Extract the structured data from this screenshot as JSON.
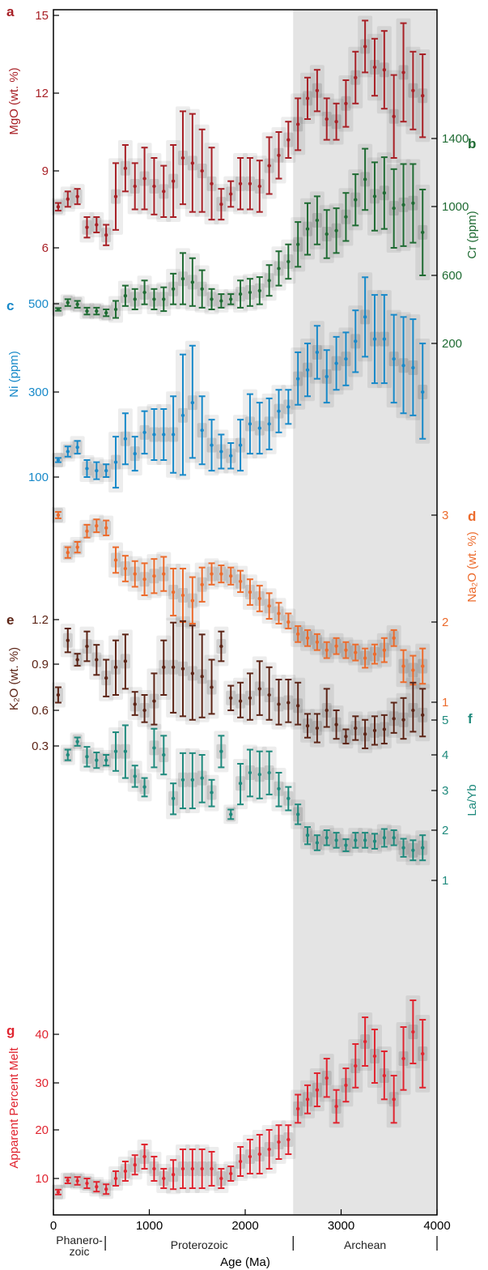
{
  "chart_data": {
    "type": "scatter",
    "x_axis": {
      "label": "Age (Ma)",
      "range": [
        0,
        4000
      ],
      "ticks": [
        "0",
        "1000",
        "2000",
        "3000",
        "4000"
      ],
      "shaded_from": 2500,
      "eons": [
        {
          "name": "Phanero-",
          "name2": "zoic",
          "from": 0,
          "to": 541
        },
        {
          "name": "Proterozoic",
          "from": 541,
          "to": 2500
        },
        {
          "name": "Archean",
          "from": 2500,
          "to": 4000
        }
      ]
    },
    "x": [
      50,
      150,
      250,
      350,
      450,
      550,
      650,
      750,
      850,
      950,
      1050,
      1150,
      1250,
      1350,
      1450,
      1550,
      1650,
      1750,
      1850,
      1950,
      2050,
      2150,
      2250,
      2350,
      2450,
      2550,
      2650,
      2750,
      2850,
      2950,
      3050,
      3150,
      3250,
      3350,
      3450,
      3550,
      3650,
      3750,
      3850
    ],
    "panels": [
      {
        "letter": "a",
        "label": "MgO (wt. %)",
        "side": "left",
        "color": "#a82026",
        "ticks": [
          "6",
          "9",
          "12",
          "15"
        ],
        "values": [
          7.6,
          7.9,
          8.0,
          6.8,
          6.9,
          6.5,
          8.0,
          9.1,
          8.4,
          8.7,
          8.4,
          8.2,
          8.6,
          9.5,
          9.3,
          9.0,
          8.5,
          7.7,
          8.1,
          8.5,
          8.5,
          8.4,
          9.2,
          9.6,
          10.2,
          10.8,
          11.8,
          12.1,
          11.0,
          10.9,
          11.6,
          12.6,
          13.8,
          13.0,
          12.9,
          11.1,
          12.8,
          12.1,
          11.9
        ],
        "err": [
          0.15,
          0.3,
          0.3,
          0.4,
          0.3,
          0.4,
          1.3,
          0.9,
          0.9,
          1.2,
          1.1,
          1.0,
          1.4,
          1.8,
          1.9,
          1.6,
          1.4,
          0.6,
          0.5,
          1.0,
          1.0,
          1.0,
          1.1,
          0.9,
          0.7,
          1.0,
          0.8,
          0.8,
          0.8,
          0.7,
          0.9,
          1.0,
          1.0,
          1.1,
          1.5,
          1.6,
          1.9,
          1.5,
          1.6
        ]
      },
      {
        "letter": "b",
        "label": "Cr (ppm)",
        "side": "right",
        "color": "#1f6b33",
        "ticks": [
          "200",
          "600",
          "1000",
          "1400"
        ],
        "values": [
          400,
          440,
          430,
          390,
          390,
          380,
          400,
          480,
          460,
          500,
          460,
          460,
          520,
          580,
          560,
          520,
          460,
          450,
          460,
          490,
          500,
          510,
          570,
          640,
          680,
          780,
          870,
          920,
          840,
          860,
          940,
          1040,
          1160,
          1060,
          1080,
          990,
          1010,
          1020,
          850
        ],
        "err": [
          8,
          20,
          20,
          20,
          20,
          20,
          50,
          60,
          60,
          70,
          60,
          70,
          90,
          150,
          140,
          110,
          60,
          40,
          30,
          80,
          80,
          80,
          90,
          100,
          100,
          130,
          150,
          140,
          140,
          130,
          140,
          150,
          180,
          200,
          210,
          230,
          240,
          230,
          250
        ]
      },
      {
        "letter": "c",
        "label": "Ni (ppm)",
        "side": "left",
        "color": "#1789c9",
        "ticks": [
          "100",
          "300",
          "500"
        ],
        "values": [
          140,
          160,
          170,
          120,
          115,
          115,
          135,
          190,
          155,
          205,
          200,
          200,
          200,
          245,
          275,
          210,
          175,
          160,
          150,
          175,
          225,
          215,
          225,
          255,
          265,
          330,
          350,
          390,
          335,
          365,
          375,
          415,
          470,
          420,
          420,
          375,
          360,
          355,
          300
        ],
        "err": [
          5,
          12,
          15,
          20,
          20,
          15,
          60,
          60,
          40,
          50,
          60,
          60,
          90,
          140,
          130,
          80,
          60,
          40,
          30,
          60,
          70,
          60,
          60,
          50,
          40,
          60,
          60,
          60,
          60,
          60,
          60,
          70,
          90,
          100,
          100,
          100,
          110,
          110,
          110
        ]
      },
      {
        "letter": "d",
        "label": "Na₂O (wt. %)",
        "side": "right",
        "color": "#ec6b2c",
        "ticks": [
          "1",
          "2",
          "3"
        ],
        "values": [
          3.0,
          2.65,
          2.7,
          2.85,
          2.9,
          2.88,
          2.58,
          2.5,
          2.45,
          2.4,
          2.43,
          2.45,
          2.28,
          2.25,
          2.2,
          2.35,
          2.45,
          2.45,
          2.43,
          2.38,
          2.28,
          2.22,
          2.15,
          2.08,
          2.0,
          1.85,
          1.8,
          1.75,
          1.65,
          1.7,
          1.65,
          1.62,
          1.55,
          1.6,
          1.65,
          1.8,
          1.45,
          1.4,
          1.45
        ],
        "err": [
          0.03,
          0.05,
          0.05,
          0.06,
          0.06,
          0.07,
          0.12,
          0.12,
          0.12,
          0.15,
          0.16,
          0.16,
          0.22,
          0.25,
          0.22,
          0.16,
          0.1,
          0.08,
          0.08,
          0.1,
          0.12,
          0.12,
          0.12,
          0.1,
          0.08,
          0.1,
          0.1,
          0.1,
          0.1,
          0.1,
          0.1,
          0.1,
          0.12,
          0.12,
          0.15,
          0.1,
          0.2,
          0.18,
          0.22
        ]
      },
      {
        "letter": "e",
        "label": "K₂O (wt. %)",
        "side": "left",
        "color": "#5c2416",
        "ticks": [
          "0.3",
          "0.6",
          "0.9",
          "1.2"
        ],
        "values": [
          0.7,
          1.06,
          0.93,
          1.02,
          0.93,
          0.81,
          0.88,
          0.92,
          0.64,
          0.6,
          0.66,
          0.88,
          0.88,
          0.87,
          0.84,
          0.82,
          0.75,
          1.02,
          0.68,
          0.66,
          0.68,
          0.74,
          0.7,
          0.64,
          0.65,
          0.63,
          0.47,
          0.45,
          0.6,
          0.48,
          0.38,
          0.45,
          0.4,
          0.43,
          0.44,
          0.53,
          0.52,
          0.6,
          0.56
        ],
        "err": [
          0.05,
          0.08,
          0.04,
          0.1,
          0.1,
          0.12,
          0.18,
          0.18,
          0.08,
          0.1,
          0.18,
          0.18,
          0.3,
          0.32,
          0.32,
          0.28,
          0.18,
          0.1,
          0.08,
          0.12,
          0.16,
          0.18,
          0.18,
          0.16,
          0.15,
          0.15,
          0.1,
          0.12,
          0.14,
          0.12,
          0.06,
          0.1,
          0.12,
          0.12,
          0.12,
          0.12,
          0.16,
          0.18,
          0.18
        ]
      },
      {
        "letter": "f",
        "label": "La/Yb",
        "side": "right",
        "color": "#1f8a7d",
        "ticks": [
          "1",
          "2",
          "3",
          "4",
          "5"
        ],
        "values": [
          null,
          4.0,
          4.38,
          3.95,
          3.85,
          3.85,
          4.1,
          4.1,
          3.4,
          3.1,
          4.2,
          4.0,
          2.8,
          3.3,
          3.3,
          3.35,
          2.95,
          4.1,
          2.4,
          3.2,
          3.5,
          3.45,
          3.5,
          3.05,
          2.8,
          2.4,
          1.9,
          1.75,
          1.85,
          1.8,
          1.7,
          1.8,
          1.8,
          1.78,
          1.85,
          1.85,
          1.65,
          1.6,
          1.65
        ],
        "err": [
          0,
          0.15,
          0.12,
          0.28,
          0.22,
          0.15,
          0.55,
          0.75,
          0.3,
          0.25,
          0.55,
          0.55,
          0.4,
          0.75,
          0.75,
          0.65,
          0.35,
          0.45,
          0.12,
          0.55,
          0.65,
          0.65,
          0.6,
          0.45,
          0.3,
          0.25,
          0.18,
          0.15,
          0.15,
          0.15,
          0.12,
          0.15,
          0.15,
          0.15,
          0.18,
          0.15,
          0.18,
          0.2,
          0.25
        ]
      },
      {
        "letter": "g",
        "label": "Apparent Percent Melt",
        "side": "left",
        "color": "#e02530",
        "ticks": [
          "10",
          "20",
          "30",
          "40"
        ],
        "values": [
          7.2,
          9.6,
          9.5,
          9.0,
          8.3,
          7.8,
          10.0,
          11.5,
          12.8,
          14.5,
          12.0,
          10.0,
          10.8,
          12.0,
          12.0,
          12.0,
          12.0,
          10.0,
          11.0,
          13.5,
          14.5,
          15.0,
          16.0,
          17.5,
          18.0,
          24.5,
          26.5,
          28.5,
          31.0,
          25.0,
          29.5,
          33.5,
          38.5,
          35.5,
          31.5,
          26.5,
          35.0,
          40.5,
          36.0
        ],
        "err": [
          0.5,
          0.6,
          0.8,
          1.0,
          1.0,
          1.0,
          1.5,
          2.0,
          2.0,
          2.5,
          2.5,
          2.0,
          3.0,
          4.0,
          4.0,
          4.0,
          3.5,
          2.0,
          1.5,
          3.0,
          3.5,
          4.0,
          4.0,
          3.5,
          3.0,
          3.0,
          3.0,
          3.5,
          4.0,
          3.5,
          3.5,
          4.5,
          5.0,
          5.5,
          5.0,
          5.0,
          6.5,
          6.5,
          7.0
        ]
      }
    ]
  }
}
